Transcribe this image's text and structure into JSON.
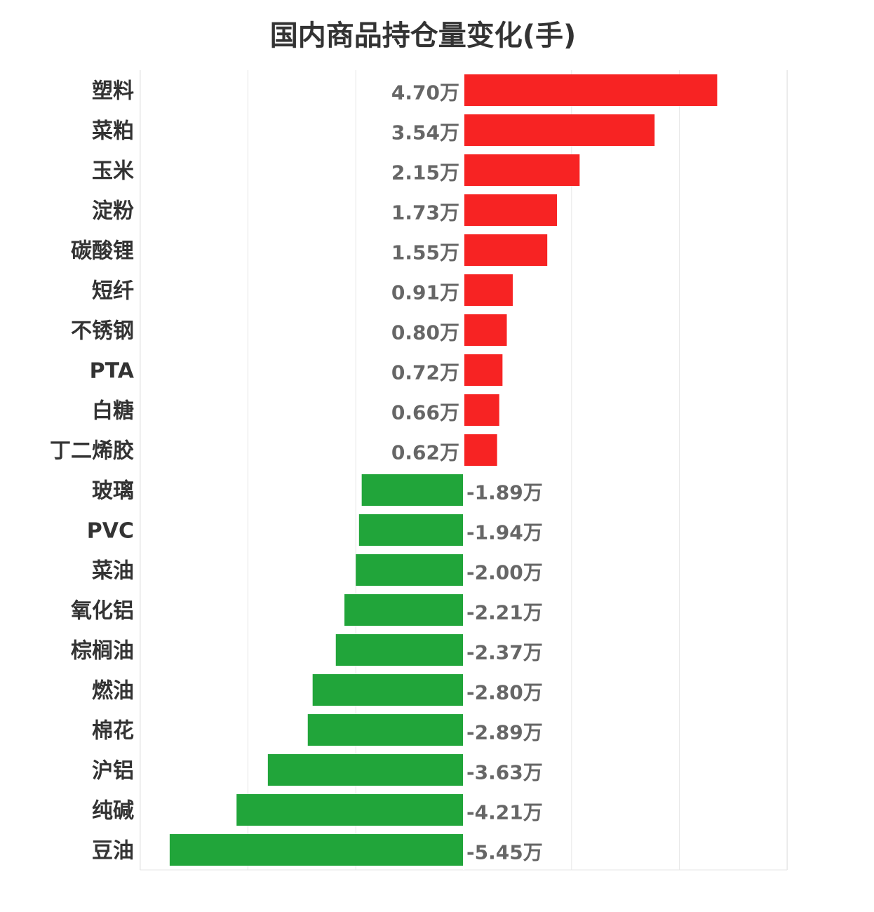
{
  "chart_data": {
    "type": "bar",
    "orientation": "horizontal",
    "title": "国内商品持仓量变化(手)",
    "xlabel": "",
    "ylabel": "",
    "unit": "万",
    "xlim": [
      -6.0,
      6.0
    ],
    "grid": true,
    "categories": [
      "塑料",
      "菜粕",
      "玉米",
      "淀粉",
      "碳酸锂",
      "短纤",
      "不锈钢",
      "PTA",
      "白糖",
      "丁二烯胶",
      "玻璃",
      "PVC",
      "菜油",
      "氧化铝",
      "棕榈油",
      "燃油",
      "棉花",
      "沪铝",
      "纯碱",
      "豆油"
    ],
    "values": [
      4.7,
      3.54,
      2.15,
      1.73,
      1.55,
      0.91,
      0.8,
      0.72,
      0.66,
      0.62,
      -1.89,
      -1.94,
      -2.0,
      -2.21,
      -2.37,
      -2.8,
      -2.89,
      -3.63,
      -4.21,
      -5.45
    ],
    "value_labels": [
      "4.70万",
      "3.54万",
      "2.15万",
      "1.73万",
      "1.55万",
      "0.91万",
      "0.80万",
      "0.72万",
      "0.66万",
      "0.62万",
      "-1.89万",
      "-1.94万",
      "-2.00万",
      "-2.21万",
      "-2.37万",
      "-2.80万",
      "-2.89万",
      "-3.63万",
      "-4.21万",
      "-5.45万"
    ],
    "colors": {
      "positive": "#f72323",
      "negative": "#21a53a",
      "grid": "#e6e6e6"
    }
  }
}
